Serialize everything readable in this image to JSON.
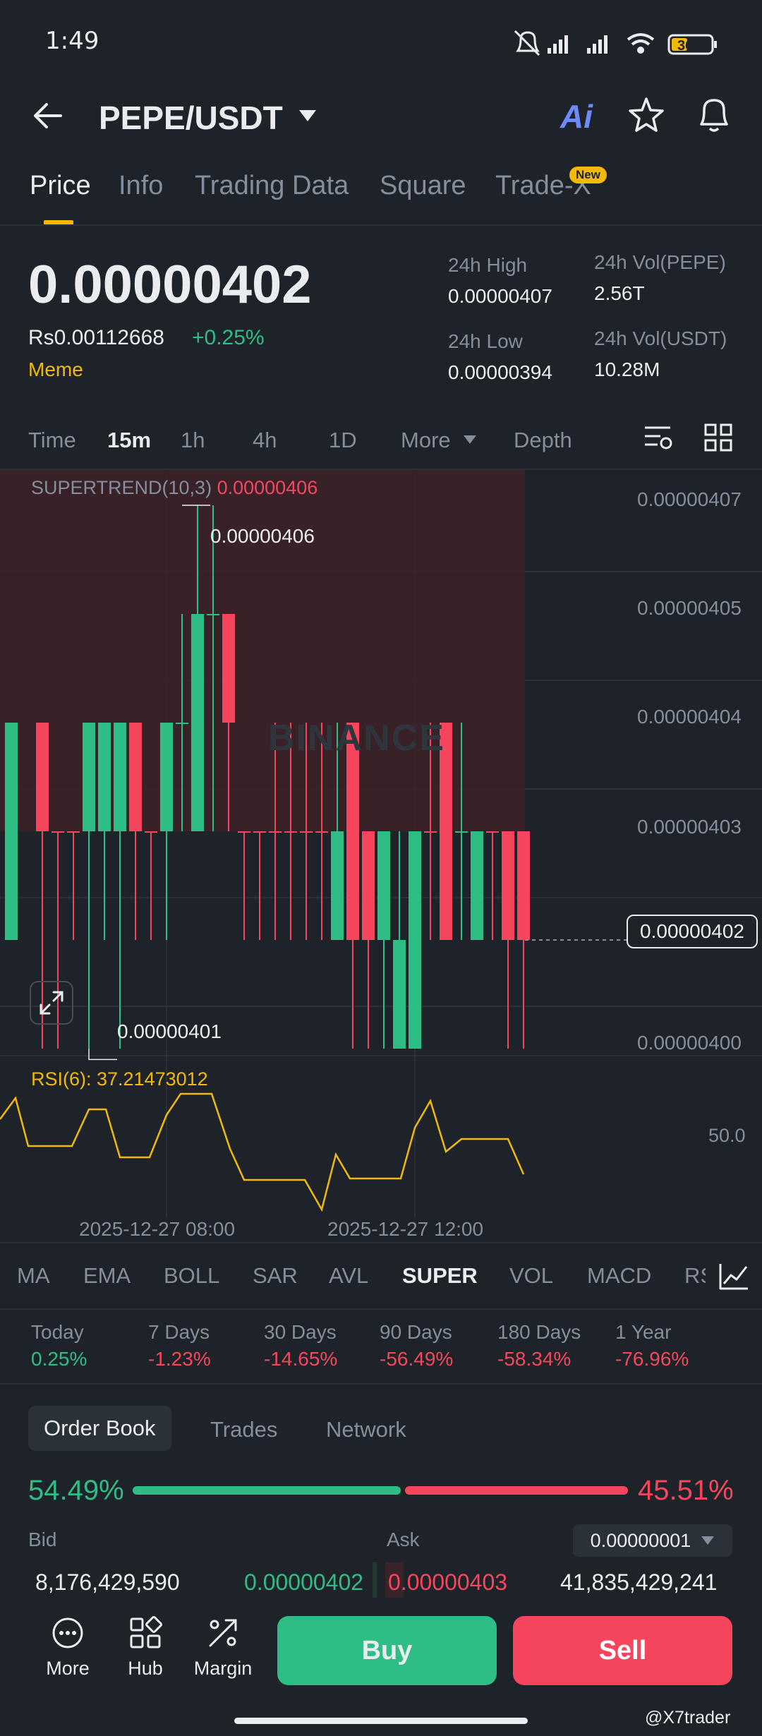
{
  "status_bar": {
    "time": "1:49",
    "battery": "36"
  },
  "header": {
    "pair": "PEPE/USDT",
    "ai_label": "Ai"
  },
  "tabs": [
    {
      "label": "Price",
      "active": true
    },
    {
      "label": "Info"
    },
    {
      "label": "Trading Data"
    },
    {
      "label": "Square"
    },
    {
      "label": "Trade-X",
      "badge": "New"
    }
  ],
  "ticker": {
    "last_price": "0.00000402",
    "fiat_price": "Rs0.00112668",
    "change": "+0.25%",
    "tag": "Meme",
    "high_label": "24h High",
    "high": "0.00000407",
    "low_label": "24h Low",
    "low": "0.00000394",
    "vol_base_label": "24h Vol(PEPE)",
    "vol_base": "2.56T",
    "vol_quote_label": "24h Vol(USDT)",
    "vol_quote": "10.28M"
  },
  "intervals": {
    "items": [
      "Time",
      "15m",
      "1h",
      "4h",
      "1D"
    ],
    "active": "15m",
    "more": "More",
    "depth": "Depth"
  },
  "chart": {
    "indicator_label": "SUPERTREND(10,3)",
    "indicator_value": "0.00000406",
    "y_axis": [
      "0.00000407",
      "0.00000405",
      "0.00000404",
      "0.00000403",
      "0.00000400"
    ],
    "current_price": "0.00000402",
    "high_annotation": "0.00000406",
    "low_annotation": "0.00000401",
    "watermark": "BINANCE",
    "rsi_label": "RSI(6): 37.21473012",
    "rsi_level": "50.0",
    "x_axis": [
      "2025-12-27 08:00",
      "2025-12-27 12:00"
    ]
  },
  "chart_data": {
    "type": "candlestick",
    "y_range": [
      4e-06,
      4.07e-06
    ],
    "supertrend": 4.06e-06,
    "last": 4.02e-06,
    "visible_high": 4.06e-06,
    "visible_low": 4.01e-06
  },
  "indicators": {
    "items": [
      "MA",
      "EMA",
      "BOLL",
      "SAR",
      "AVL",
      "SUPER",
      "VOL",
      "MACD",
      "RS"
    ],
    "active": "SUPER"
  },
  "performance": [
    {
      "label": "Today",
      "value": "0.25%",
      "dir": "up"
    },
    {
      "label": "7 Days",
      "value": "-1.23%",
      "dir": "down"
    },
    {
      "label": "30 Days",
      "value": "-14.65%",
      "dir": "down"
    },
    {
      "label": "90 Days",
      "value": "-56.49%",
      "dir": "down"
    },
    {
      "label": "180 Days",
      "value": "-58.34%",
      "dir": "down"
    },
    {
      "label": "1 Year",
      "value": "-76.96%",
      "dir": "down"
    }
  ],
  "order_book": {
    "tabs": [
      "Order Book",
      "Trades",
      "Network"
    ],
    "bid_pct": "54.49%",
    "ask_pct": "45.51%",
    "bid_label": "Bid",
    "ask_label": "Ask",
    "precision": "0.00000001",
    "bid_qty": "8,176,429,590",
    "bid_price": "0.00000402",
    "ask_price": "0.00000403",
    "ask_qty": "41,835,429,241"
  },
  "bottom_nav": {
    "more": "More",
    "hub": "Hub",
    "margin": "Margin",
    "buy": "Buy",
    "sell": "Sell"
  },
  "credit": "@X7trader",
  "colors": {
    "up": "#2ebd85",
    "down": "#f6465d",
    "accent": "#f0b90b",
    "bg": "#1e2329"
  }
}
